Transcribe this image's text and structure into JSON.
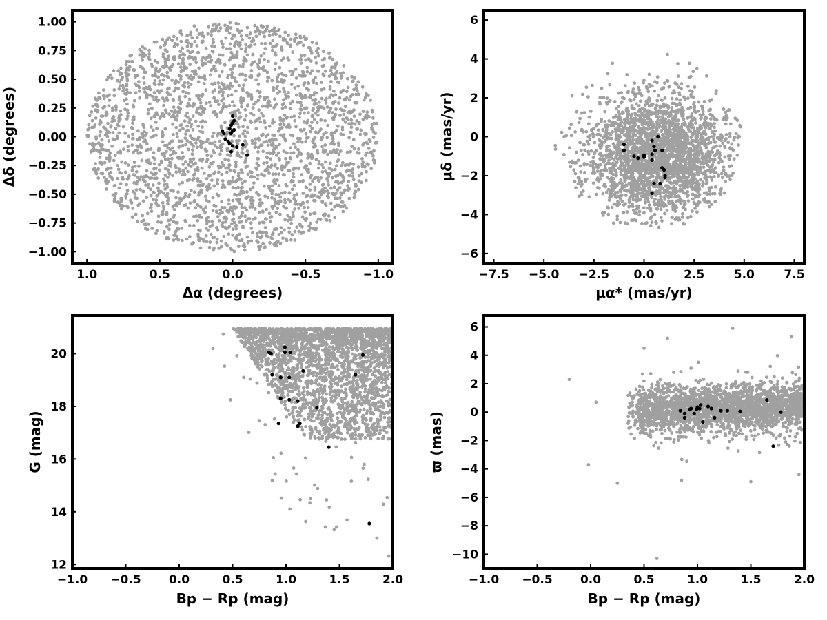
{
  "colors": {
    "field": "#a0a0a0",
    "members": "#000000",
    "frame": "#000000"
  },
  "chart_data": [
    {
      "type": "scatter",
      "title": "",
      "xlabel": "Δα (degrees)",
      "ylabel": "Δδ (degrees)",
      "xlim": [
        1.1,
        -1.1
      ],
      "ylim": [
        -1.1,
        1.1
      ],
      "x_reversed": true,
      "xticks": [
        1.0,
        0.5,
        0.0,
        -0.5,
        -1.0
      ],
      "xtick_labels": [
        "1.0",
        "0.5",
        "0.0",
        "−0.5",
        "−1.0"
      ],
      "yticks": [
        1.0,
        0.75,
        0.5,
        0.25,
        0.0,
        -0.25,
        -0.5,
        -0.75,
        -1.0
      ],
      "ytick_labels": [
        "1.00",
        "0.75",
        "0.50",
        "0.25",
        "0.00",
        "−0.25",
        "−0.50",
        "−0.75",
        "−1.00"
      ],
      "grid": false,
      "background_field": {
        "distribution": "uniform_disk",
        "center": [
          0,
          0
        ],
        "radius": 1.0,
        "count": 2600,
        "seed": 11
      },
      "series": [
        {
          "points": [
            [
              0.0,
              0.18
            ],
            [
              -0.01,
              0.14
            ],
            [
              0.0,
              0.12
            ],
            [
              0.01,
              0.1
            ],
            [
              0.02,
              0.07
            ],
            [
              0.0,
              0.05
            ],
            [
              0.01,
              0.03
            ],
            [
              0.07,
              0.05
            ],
            [
              0.06,
              0.03
            ],
            [
              -0.01,
              0.06
            ],
            [
              0.05,
              -0.02
            ],
            [
              0.03,
              -0.04
            ],
            [
              0.02,
              -0.06
            ],
            [
              0.0,
              -0.08
            ],
            [
              -0.03,
              -0.09
            ],
            [
              -0.07,
              -0.07
            ],
            [
              0.01,
              -0.13
            ],
            [
              -0.1,
              -0.16
            ]
          ]
        }
      ]
    },
    {
      "type": "scatter",
      "title": "",
      "xlabel": "μα* (mas/yr)",
      "ylabel": "μδ (mas/yr)",
      "xlim": [
        -8.0,
        8.0
      ],
      "ylim": [
        -6.5,
        6.5
      ],
      "xticks": [
        -7.5,
        -5.0,
        -2.5,
        0.0,
        2.5,
        5.0,
        7.5
      ],
      "xtick_labels": [
        "−7.5",
        "−5.0",
        "−2.5",
        "0.0",
        "2.5",
        "5.0",
        "7.5"
      ],
      "yticks": [
        6,
        4,
        2,
        0,
        -2,
        -4,
        -6
      ],
      "ytick_labels": [
        "6",
        "4",
        "2",
        "0",
        "−2",
        "−4",
        "−6"
      ],
      "grid": false,
      "background_field": {
        "distribution": "gaussian_blob",
        "center": [
          0.7,
          -1.0
        ],
        "sigma": [
          1.8,
          1.6
        ],
        "clip_x": [
          -4.8,
          4.9
        ],
        "clip_y": [
          -4.9,
          4.7
        ],
        "count": 2600,
        "seed": 23
      },
      "series": [
        {
          "points": [
            [
              -1.0,
              -0.4
            ],
            [
              -1.0,
              -0.7
            ],
            [
              -0.5,
              -1.0
            ],
            [
              -0.3,
              -1.1
            ],
            [
              0.0,
              -0.95
            ],
            [
              0.0,
              -1.05
            ],
            [
              0.4,
              -0.2
            ],
            [
              0.5,
              -0.5
            ],
            [
              0.55,
              -0.7
            ],
            [
              0.4,
              -0.9
            ],
            [
              0.4,
              -1.2
            ],
            [
              0.5,
              -2.4
            ],
            [
              0.4,
              -2.9
            ],
            [
              0.7,
              0.0
            ],
            [
              0.9,
              -0.7
            ],
            [
              0.9,
              -1.6
            ],
            [
              1.0,
              -1.7
            ],
            [
              1.05,
              -2.0
            ],
            [
              1.05,
              -2.1
            ],
            [
              0.8,
              -2.4
            ]
          ]
        }
      ]
    },
    {
      "type": "scatter",
      "title": "",
      "xlabel": "Bp − Rp (mag)",
      "ylabel": "G (mag)",
      "xlim": [
        -1.0,
        2.0
      ],
      "ylim": [
        11.85,
        21.45
      ],
      "xticks": [
        -1.0,
        -0.5,
        0.0,
        0.5,
        1.0,
        1.5,
        2.0
      ],
      "xtick_labels": [
        "−1.0",
        "−0.5",
        "0.0",
        "0.5",
        "1.0",
        "1.5",
        "2.0"
      ],
      "yticks": [
        12,
        14,
        16,
        18,
        20
      ],
      "ytick_labels": [
        "12",
        "14",
        "16",
        "18",
        "20"
      ],
      "grid": false,
      "background_field": {
        "distribution": "cmd_wedge",
        "count": 2600,
        "seed": 37
      },
      "series": [
        {
          "points": [
            [
              0.84,
              20.05
            ],
            [
              0.86,
              20.0
            ],
            [
              0.99,
              20.25
            ],
            [
              0.99,
              20.05
            ],
            [
              1.04,
              20.05
            ],
            [
              1.72,
              19.95
            ],
            [
              0.87,
              19.2
            ],
            [
              0.95,
              19.1
            ],
            [
              1.03,
              19.1
            ],
            [
              1.16,
              19.35
            ],
            [
              1.65,
              19.2
            ],
            [
              0.95,
              18.3
            ],
            [
              1.03,
              18.25
            ],
            [
              1.11,
              18.2
            ],
            [
              1.29,
              17.95
            ],
            [
              0.93,
              17.35
            ],
            [
              1.11,
              17.25
            ],
            [
              1.13,
              17.35
            ],
            [
              1.4,
              16.45
            ],
            [
              1.78,
              13.55
            ]
          ]
        }
      ]
    },
    {
      "type": "scatter",
      "title": "",
      "xlabel": "Bp − Rp (mag)",
      "ylabel": "ϖ (mas)",
      "xlim": [
        -1.0,
        2.0
      ],
      "ylim": [
        -11.0,
        6.8
      ],
      "xticks": [
        -1.0,
        -0.5,
        0.0,
        0.5,
        1.0,
        1.5,
        2.0
      ],
      "xtick_labels": [
        "−1.0",
        "−0.5",
        "0.0",
        "0.5",
        "1.0",
        "1.5",
        "2.0"
      ],
      "yticks": [
        6,
        4,
        2,
        0,
        -2,
        -4,
        -6,
        -8,
        -10
      ],
      "ytick_labels": [
        "6",
        "4",
        "2",
        "0",
        "−2",
        "−4",
        "−6",
        "−8",
        "−10"
      ],
      "grid": false,
      "background_field": {
        "distribution": "parallax_band",
        "count": 2600,
        "seed": 53
      },
      "series": [
        {
          "points": [
            [
              0.84,
              0.1
            ],
            [
              0.88,
              -0.1
            ],
            [
              0.88,
              -0.4
            ],
            [
              0.93,
              0.2
            ],
            [
              0.94,
              0.25
            ],
            [
              0.97,
              -0.1
            ],
            [
              0.99,
              0.2
            ],
            [
              1.0,
              0.35
            ],
            [
              1.02,
              0.25
            ],
            [
              1.03,
              0.5
            ],
            [
              1.05,
              -0.7
            ],
            [
              1.1,
              0.4
            ],
            [
              1.13,
              0.25
            ],
            [
              1.16,
              -0.4
            ],
            [
              1.22,
              0.1
            ],
            [
              1.28,
              0.1
            ],
            [
              1.4,
              0.05
            ],
            [
              1.65,
              0.85
            ],
            [
              1.71,
              -2.4
            ],
            [
              1.78,
              0.0
            ]
          ]
        }
      ]
    }
  ]
}
